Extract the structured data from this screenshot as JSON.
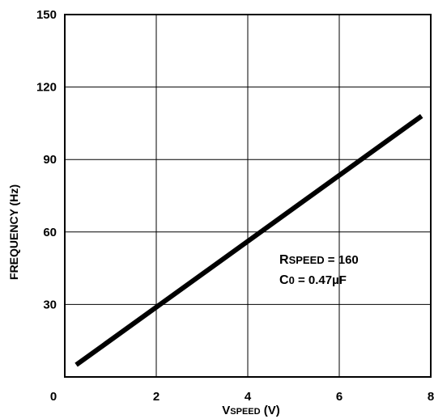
{
  "chart_data": {
    "type": "line",
    "xlabel": {
      "main": "V",
      "sub": "SPEED",
      "unit": " (V)"
    },
    "ylabel": "FREQUENCY (Hz)",
    "xlim": [
      0,
      8
    ],
    "ylim": [
      0,
      150
    ],
    "x_ticks": [
      "0",
      "2",
      "4",
      "6",
      "8"
    ],
    "y_ticks": [
      "30",
      "60",
      "90",
      "120",
      "150"
    ],
    "grid": true,
    "series": [
      {
        "x": [
          0.25,
          7.8
        ],
        "y": [
          5,
          108
        ],
        "color": "#000000"
      }
    ],
    "annotations": [
      {
        "main": "R",
        "sub": "SPEED",
        "rest": " = 160"
      },
      {
        "main": "C",
        "sub": "0",
        "rest": " = 0.47µF"
      }
    ]
  }
}
